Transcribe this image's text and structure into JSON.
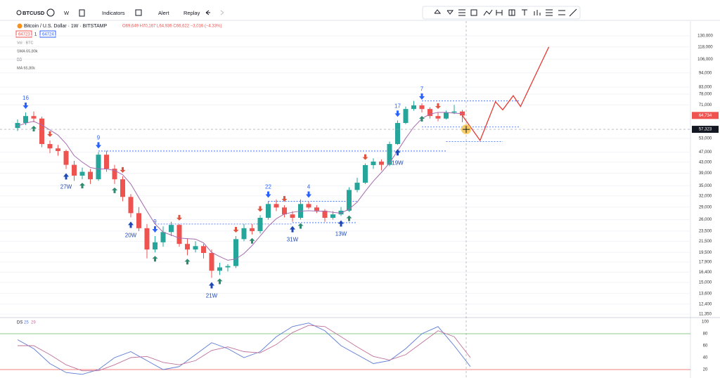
{
  "toolbar": {
    "symbol": "BTCUSD",
    "interval": "W",
    "indicators": "Indicators",
    "alert": "Alert",
    "replay": "Replay"
  },
  "legend": {
    "title": "Bitcoin / U.S. Dollar · 1W · BITSTAMP",
    "ohlc": "O69,649 H70,167 L64,936 C66,622 −3,016 (−4.33%)",
    "bid": "64723",
    "spread": "1",
    "ask": "64724",
    "vol": "Vol · BTC",
    "sma": "SMA 65,80k",
    "bb": "BB",
    "ma": "MA 65,80k"
  },
  "chart_data": {
    "type": "candlestick",
    "scale": "log",
    "grid": true,
    "ylim": [
      11150,
      148000
    ],
    "yticks": [
      {
        "value": 130000,
        "label": "130,000"
      },
      {
        "value": 118000,
        "label": "118,000"
      },
      {
        "value": 106000,
        "label": "106,000"
      },
      {
        "value": 94000,
        "label": "94,000"
      },
      {
        "value": 83000,
        "label": "83,000"
      },
      {
        "value": 78000,
        "label": "78,000"
      },
      {
        "value": 71000,
        "label": "71,000"
      },
      {
        "value": 53000,
        "label": "53,000"
      },
      {
        "value": 47000,
        "label": "47,000"
      },
      {
        "value": 43000,
        "label": "43,000"
      },
      {
        "value": 39000,
        "label": "39,000"
      },
      {
        "value": 35000,
        "label": "35,000"
      },
      {
        "value": 32000,
        "label": "32,000"
      },
      {
        "value": 29000,
        "label": "29,000"
      },
      {
        "value": 26000,
        "label": "26,000"
      },
      {
        "value": 23500,
        "label": "23,500"
      },
      {
        "value": 21500,
        "label": "21,500"
      },
      {
        "value": 19500,
        "label": "19,500"
      },
      {
        "value": 17900,
        "label": "17,900"
      },
      {
        "value": 16400,
        "label": "16,400"
      },
      {
        "value": 15000,
        "label": "15,000"
      },
      {
        "value": 13600,
        "label": "13,600"
      },
      {
        "value": 12400,
        "label": "12,400"
      },
      {
        "value": 11350,
        "label": "11,350"
      }
    ],
    "up_color": "#26a69a",
    "down_color": "#ef5350",
    "open": [
      58000,
      60600,
      64400,
      63000,
      50400,
      48500,
      47400,
      42000,
      38200,
      39500,
      37000,
      45900,
      40600,
      37000,
      31700,
      27500,
      24100,
      20000,
      21300,
      23300,
      24800,
      21000,
      20000,
      20600,
      19400,
      16600,
      17100,
      17300,
      21900,
      24100,
      23500,
      26400,
      29800,
      28900,
      27200,
      26400,
      29800,
      28900,
      28100,
      26400,
      27200,
      28100,
      33700,
      35900,
      41900,
      43200,
      42000,
      50400,
      60600,
      68500,
      70700,
      68500,
      64400,
      63000,
      66400,
      67000
    ],
    "high": [
      62500,
      66500,
      67000,
      64000,
      52000,
      50000,
      48000,
      43500,
      41000,
      40500,
      47000,
      47500,
      42000,
      38000,
      32500,
      29000,
      25000,
      22500,
      24500,
      25500,
      25000,
      22000,
      21500,
      21000,
      20000,
      17800,
      17600,
      22500,
      25000,
      25000,
      27000,
      30500,
      31000,
      29500,
      28000,
      31000,
      30500,
      29500,
      28500,
      28000,
      29000,
      34500,
      37500,
      42500,
      44500,
      44000,
      51500,
      62000,
      70000,
      73500,
      72000,
      69500,
      66500,
      67500,
      71000,
      68000
    ],
    "low": [
      56500,
      59500,
      61000,
      49000,
      46500,
      45500,
      40500,
      36500,
      37000,
      35500,
      36500,
      39500,
      35500,
      30500,
      26500,
      23500,
      18500,
      19500,
      20500,
      22500,
      20500,
      19000,
      19500,
      18500,
      15600,
      16000,
      16500,
      17000,
      21500,
      22800,
      23000,
      26000,
      28000,
      26500,
      25500,
      26000,
      28500,
      27500,
      25500,
      26000,
      26800,
      27800,
      33000,
      35500,
      40500,
      40000,
      41500,
      50000,
      60000,
      67500,
      66500,
      63000,
      61500,
      62500,
      65500,
      61000
    ],
    "close": [
      60600,
      64400,
      63000,
      50400,
      48500,
      47400,
      42000,
      38200,
      39500,
      37000,
      45900,
      40600,
      37000,
      31700,
      27500,
      24100,
      20000,
      21300,
      23300,
      24800,
      21000,
      20000,
      20600,
      19400,
      16600,
      17100,
      17300,
      21900,
      24100,
      23500,
      26400,
      29800,
      28900,
      27200,
      26400,
      29800,
      28900,
      28100,
      26400,
      27200,
      28100,
      33700,
      35900,
      41900,
      43200,
      42000,
      50400,
      60600,
      68500,
      70700,
      68500,
      64400,
      63000,
      66400,
      67000,
      64700
    ],
    "ma": {
      "color": "#a56bb0",
      "values": [
        59000,
        60500,
        61500,
        59500,
        57000,
        54500,
        50500,
        45500,
        43000,
        41000,
        40500,
        40500,
        40000,
        38500,
        35500,
        31500,
        28000,
        25000,
        23300,
        22700,
        22100,
        22000,
        21900,
        21200,
        19500,
        18800,
        18200,
        18400,
        19300,
        20700,
        22500,
        24500,
        26200,
        27300,
        27700,
        28000,
        28100,
        28000,
        28000,
        27700,
        27500,
        28500,
        30300,
        33300,
        36400,
        39300,
        42700,
        47500,
        53000,
        58500,
        63000,
        65500,
        66500,
        66500,
        66000,
        65800
      ]
    },
    "signals_top": [
      {
        "label": "16",
        "bar": 1
      },
      {
        "label": "9",
        "bar": 10
      },
      {
        "label": "9",
        "bar": 17
      },
      {
        "label": "22",
        "bar": 31
      },
      {
        "label": "4",
        "bar": 36
      },
      {
        "label": "17",
        "bar": 47
      },
      {
        "label": "7",
        "bar": 50
      }
    ],
    "signals_bottom": [
      {
        "label": "27W",
        "bar": 6
      },
      {
        "label": "20W",
        "bar": 14
      },
      {
        "label": "21W",
        "bar": 24
      },
      {
        "label": "31W",
        "bar": 34
      },
      {
        "label": "13W",
        "bar": 40
      },
      {
        "label": "19W",
        "bar": 47
      }
    ],
    "buy_signals": [
      2,
      8,
      12,
      17,
      21,
      25,
      29,
      35,
      41,
      50
    ],
    "sell_signals": [
      4,
      13,
      20,
      27,
      30,
      33,
      43,
      52
    ],
    "levels": [
      {
        "price": 47400,
        "from": 10,
        "to": 53
      },
      {
        "price": 25000,
        "from": 17,
        "to": 34
      },
      {
        "price": 30500,
        "from": 31,
        "to": 42
      },
      {
        "price": 25300,
        "from": 34,
        "to": 42
      },
      {
        "price": 73500,
        "from": 50,
        "to": 62
      },
      {
        "price": 58500,
        "from": 50,
        "to": 62
      },
      {
        "price": 51500,
        "from": 53,
        "to": 60
      }
    ],
    "projection": {
      "color": "#e53935",
      "x": [
        55,
        57.2,
        59.1,
        60,
        61.3,
        62.2,
        65.7
      ],
      "values": [
        64700,
        52000,
        73000,
        68000,
        77000,
        70000,
        118000
      ]
    },
    "last_price": {
      "value": 64734,
      "label": "64,734"
    },
    "crosshair": {
      "value": 57323,
      "label": "57,323"
    },
    "oscillator": {
      "title": "DS",
      "ylim": [
        10,
        100
      ],
      "yticks": [
        20,
        40,
        60,
        80,
        100
      ],
      "x": [
        0,
        2,
        4,
        6,
        8,
        10,
        12,
        14,
        16,
        18,
        20,
        22,
        24,
        26,
        28,
        30,
        32,
        34,
        36,
        38,
        40,
        42,
        44,
        46,
        48,
        50,
        52,
        54,
        56
      ],
      "series": [
        {
          "name": "25",
          "color": "#5b7bd5",
          "values": [
            70,
            55,
            30,
            15,
            12,
            20,
            40,
            50,
            35,
            20,
            25,
            45,
            65,
            55,
            40,
            50,
            75,
            92,
            98,
            85,
            60,
            45,
            30,
            35,
            55,
            80,
            92,
            60,
            25
          ]
        },
        {
          "name": "29",
          "color": "#c0709a",
          "values": [
            60,
            60,
            45,
            28,
            18,
            18,
            28,
            40,
            42,
            32,
            28,
            35,
            52,
            58,
            50,
            48,
            62,
            82,
            94,
            92,
            75,
            58,
            42,
            36,
            45,
            65,
            85,
            75,
            40
          ]
        }
      ],
      "bands": [
        {
          "value": 80,
          "color": "#66bb6a"
        },
        {
          "value": 20,
          "color": "#ef5350"
        }
      ]
    }
  }
}
